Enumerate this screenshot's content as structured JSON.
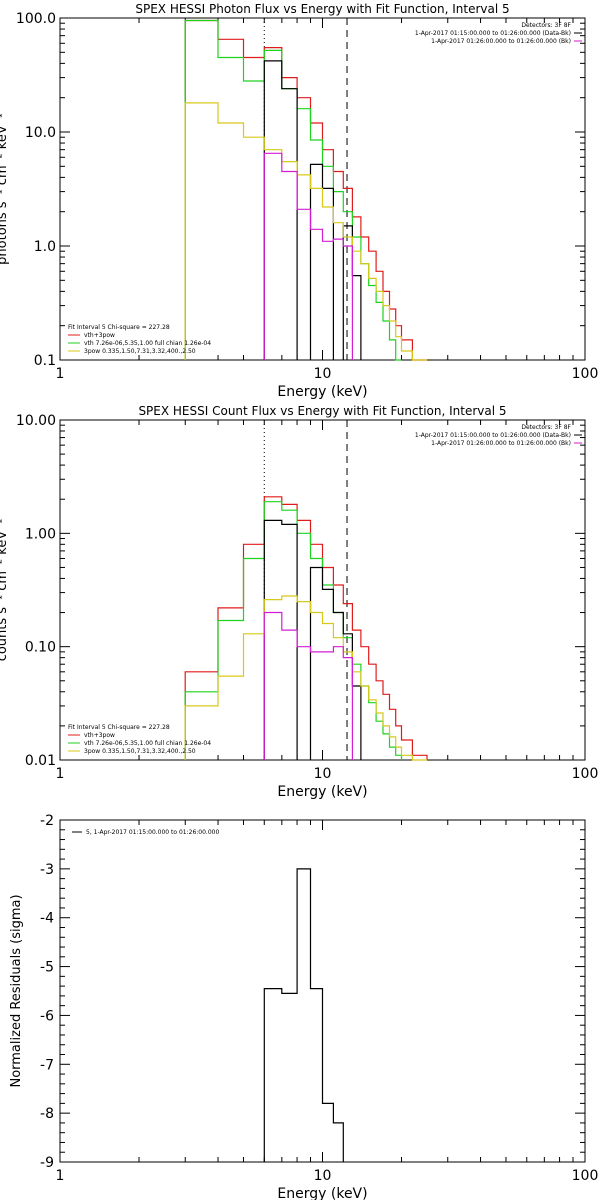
{
  "colors": {
    "red": "#e01b1b",
    "green": "#1ed21e",
    "yellow": "#d8c81a",
    "black": "#000000",
    "magenta": "#d21ed2",
    "blue": "#3030e0"
  },
  "chart_data": [
    {
      "type": "line",
      "title": "SPEX HESSI Photon Flux vs Energy with Fit Function, Interval 5",
      "xlabel": "Energy (keV)",
      "ylabel": "photons s⁻¹ cm⁻² keV⁻¹",
      "xscale": "log",
      "yscale": "log",
      "xlim": [
        1,
        100
      ],
      "ylim": [
        0.1,
        100
      ],
      "x_ticks": [
        "1",
        "10",
        "100"
      ],
      "y_ticks": [
        "0.1",
        "1.0",
        "10.0",
        "100.0"
      ],
      "info_lines": [
        {
          "text": "Detectors: 3F 8F",
          "color": "black"
        },
        {
          "text": "1-Apr-2017 01:15:00.000 to 01:26:00.000 (Data-Bk)",
          "color": "black"
        },
        {
          "text": "1-Apr-2017 01:26:00.000 to 01:26:00.000 (Bk)",
          "color": "magenta"
        }
      ],
      "fit_lines": [
        {
          "text": "Fit Interval 5   Chi-square = 227.28",
          "color": "black"
        },
        {
          "text": "vth+3pow",
          "color": "red"
        },
        {
          "text": "vth 7.26e-06,5.35,1.00  full chian 1.26e-04",
          "color": "green"
        },
        {
          "text": "3pow 0.335,1.50,7.31,3.32,400.,2.50",
          "color": "yellow"
        }
      ],
      "vlines": [
        {
          "x": 6.0,
          "style": "dotted"
        },
        {
          "x": 12.4,
          "style": "dashed"
        }
      ],
      "edges": [
        3,
        4,
        5,
        6,
        7,
        8,
        9,
        10,
        11,
        12,
        13,
        14,
        15,
        16,
        17,
        18,
        19,
        20,
        22,
        25
      ],
      "series": [
        {
          "color": "red",
          "values": [
            95,
            65,
            45,
            55,
            30,
            20,
            12,
            7.0,
            4.5,
            3.2,
            1.8,
            1.2,
            0.9,
            0.6,
            0.4,
            0.28,
            0.2,
            0.15,
            0.1
          ]
        },
        {
          "color": "green",
          "values": [
            95,
            45,
            28,
            52,
            24,
            16,
            8.5,
            5.0,
            3.0,
            2.0,
            1.2,
            0.7,
            0.45,
            0.32,
            0.22,
            0.15,
            0.1,
            null,
            null
          ]
        },
        {
          "color": "black",
          "values": [
            null,
            null,
            null,
            42,
            24,
            null,
            5.2,
            3.2,
            null,
            1.5,
            0.55,
            null,
            null,
            null,
            null,
            null,
            null,
            null,
            null
          ]
        },
        {
          "color": "yellow",
          "values": [
            18,
            12,
            9,
            7,
            5.5,
            4.2,
            3.2,
            2.2,
            1.6,
            1.2,
            0.9,
            0.7,
            0.52,
            0.4,
            0.3,
            0.22,
            0.16,
            0.12,
            0.1
          ]
        },
        {
          "color": "magenta",
          "values": [
            null,
            null,
            null,
            6.5,
            4.5,
            2.1,
            1.4,
            1.1,
            1.15,
            1.0,
            null,
            null,
            null,
            null,
            null,
            null,
            null,
            null,
            null
          ]
        }
      ]
    },
    {
      "type": "line",
      "title": "SPEX HESSI Count Flux vs Energy with Fit Function, Interval 5",
      "xlabel": "Energy (keV)",
      "ylabel": "counts s⁻¹ cm⁻² keV⁻¹",
      "xscale": "log",
      "yscale": "log",
      "xlim": [
        1,
        100
      ],
      "ylim": [
        0.01,
        10
      ],
      "x_ticks": [
        "1",
        "10",
        "100"
      ],
      "y_ticks": [
        "0.01",
        "0.10",
        "1.00",
        "10.00"
      ],
      "info_lines": [
        {
          "text": "Detectors: 3F 8F",
          "color": "black"
        },
        {
          "text": "1-Apr-2017 01:15:00.000 to 01:26:00.000 (Data-Bk)",
          "color": "black"
        },
        {
          "text": "1-Apr-2017 01:26:00.000 to 01:26:00.000 (Bk)",
          "color": "magenta"
        }
      ],
      "fit_lines": [
        {
          "text": "Fit Interval 5   Chi-square = 227.28",
          "color": "black"
        },
        {
          "text": "vth+3pow",
          "color": "red"
        },
        {
          "text": "vth 7.26e-06,5.35,1.00  full chian 1.26e-04",
          "color": "green"
        },
        {
          "text": "3pow 0.335,1.50,7.31,3.32,400.,2.50",
          "color": "yellow"
        }
      ],
      "vlines": [
        {
          "x": 6.0,
          "style": "dotted"
        },
        {
          "x": 12.4,
          "style": "dashed"
        }
      ],
      "edges": [
        3,
        4,
        5,
        6,
        7,
        8,
        9,
        10,
        11,
        12,
        13,
        14,
        15,
        16,
        17,
        18,
        19,
        20,
        22,
        25
      ],
      "series": [
        {
          "color": "red",
          "values": [
            0.06,
            0.22,
            0.8,
            2.1,
            1.8,
            1.3,
            0.8,
            0.5,
            0.35,
            0.24,
            0.14,
            0.1,
            0.07,
            0.05,
            0.038,
            0.028,
            0.02,
            0.015,
            0.011
          ]
        },
        {
          "color": "green",
          "values": [
            0.04,
            0.17,
            0.6,
            1.9,
            1.6,
            1.0,
            0.6,
            0.35,
            0.2,
            0.12,
            0.07,
            0.045,
            0.032,
            0.022,
            0.017,
            0.013,
            0.011,
            null,
            null
          ]
        },
        {
          "color": "black",
          "values": [
            null,
            null,
            null,
            1.3,
            1.2,
            null,
            0.5,
            0.32,
            0.2,
            0.13,
            0.045,
            null,
            null,
            null,
            null,
            null,
            null,
            null,
            null
          ]
        },
        {
          "color": "yellow",
          "values": [
            0.03,
            0.055,
            0.13,
            0.26,
            0.28,
            0.25,
            0.2,
            0.16,
            0.12,
            0.09,
            0.06,
            0.045,
            0.034,
            0.026,
            0.02,
            0.016,
            0.013,
            0.011,
            0.01
          ]
        },
        {
          "color": "magenta",
          "values": [
            null,
            null,
            null,
            0.2,
            0.14,
            0.1,
            0.09,
            0.09,
            0.1,
            0.08,
            null,
            null,
            null,
            null,
            null,
            null,
            null,
            null,
            null
          ]
        }
      ]
    },
    {
      "type": "line",
      "title": "",
      "xlabel": "Energy (keV)",
      "ylabel": "Normalized Residuals (sigma)",
      "xscale": "log",
      "yscale": "linear",
      "xlim": [
        1,
        100
      ],
      "ylim": [
        -9,
        -2
      ],
      "x_ticks": [
        "1",
        "10",
        "100"
      ],
      "y_ticks": [
        "-2",
        "-3",
        "-4",
        "-5",
        "-6",
        "-7",
        "-8",
        "-9"
      ],
      "legend": {
        "text": "5, 1-Apr-2017 01:15:00.000 to 01:26:00.000",
        "color": "black"
      },
      "edges": [
        6,
        7,
        8,
        9,
        10,
        11,
        12
      ],
      "series": [
        {
          "color": "black",
          "values": [
            -5.45,
            -5.55,
            -3.0,
            -5.45,
            -7.8,
            -8.2
          ]
        }
      ]
    }
  ]
}
